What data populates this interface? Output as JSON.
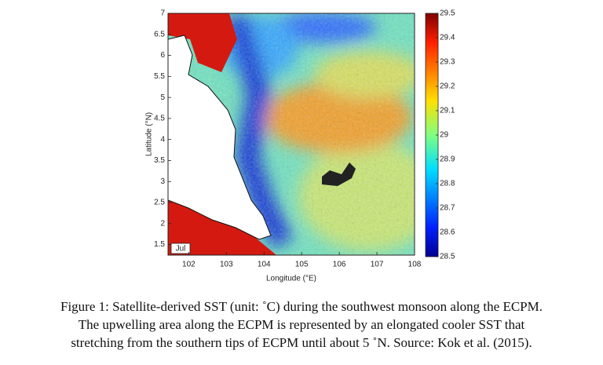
{
  "figure": {
    "xlabel": "Longitude (°E)",
    "ylabel": "Latitude (°N)",
    "xlim": [
      101.45,
      108
    ],
    "xticks": [
      102,
      103,
      104,
      105,
      106,
      107,
      108
    ],
    "ylim": [
      1.25,
      7
    ],
    "yticks": [
      1.5,
      2,
      2.5,
      3,
      3.5,
      4,
      4.5,
      5,
      5.5,
      6,
      6.5,
      7
    ],
    "colorbar": {
      "lim": [
        28.5,
        29.5
      ],
      "ticks": [
        28.5,
        28.6,
        28.7,
        28.8,
        28.9,
        29,
        29.1,
        29.2,
        29.3,
        29.4,
        29.5
      ]
    },
    "panel_label": "Jul",
    "caption": [
      "Figure 1: Satellite-derived SST (unit: ˚C) during the southwest monsoon along the ECPM.",
      "The upwelling area along the ECPM is represented by an elongated cooler SST that",
      "stretching from the southern tips of ECPM until about 5 ˚N. Source: Kok et al. (2015)."
    ]
  }
}
